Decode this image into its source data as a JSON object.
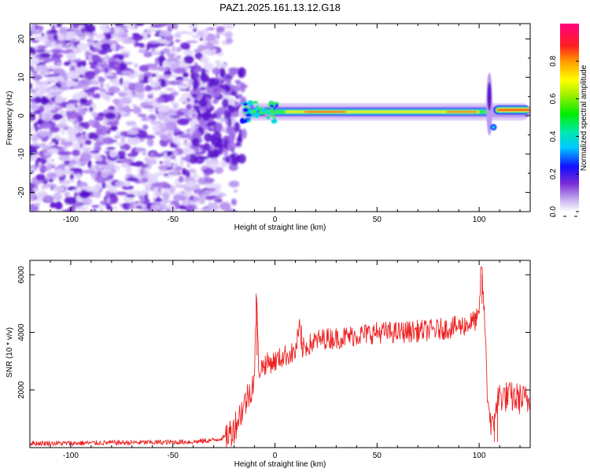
{
  "title": "PAZ1.2025.161.13.12.G18",
  "chart_data": [
    {
      "type": "heatmap",
      "xlabel": "Height of straight line (km)",
      "ylabel": "Frequency (Hz)",
      "xlim": [
        -120,
        125
      ],
      "ylim": [
        -25,
        24
      ],
      "xticks": [
        -100,
        -50,
        0,
        50,
        100
      ],
      "yticks": [
        -20,
        -10,
        0,
        10,
        20
      ],
      "grid": false,
      "colorbar": {
        "label": "Normalized spectral amplitude",
        "range": [
          0,
          1
        ],
        "ticks": [
          "0.0",
          "0.2",
          "0.4",
          "0.6",
          "0.8"
        ],
        "colormap": "rainbow (white, purple, blue, cyan, green, yellow, orange, red, magenta)"
      },
      "features": [
        {
          "x_range": [
            -120,
            -20
          ],
          "frequency_range": [
            -25,
            24
          ],
          "amplitude": "low, scattered noise (purple)"
        },
        {
          "x_range": [
            -20,
            0
          ],
          "frequency_center": 0,
          "frequency_width": 3,
          "amplitude": "medium (blue-green)"
        },
        {
          "x_range": [
            0,
            105
          ],
          "frequency_center": 1,
          "frequency_width": 3,
          "amplitude": "high, continuous band (green-yellow with red core)"
        },
        {
          "x_range": [
            103,
            107
          ],
          "frequency_range": [
            -8,
            15
          ],
          "amplitude": "vertical spike (blue-green)"
        },
        {
          "x_range": [
            108,
            125
          ],
          "frequency_center": 1.5,
          "frequency_width": 3,
          "amplitude": "very high (red core)"
        }
      ]
    },
    {
      "type": "line",
      "xlabel": "Height of straight line (km)",
      "ylabel": "SNR (10 * v/v)",
      "xlim": [
        -120,
        125
      ],
      "ylim": [
        0,
        6500
      ],
      "xticks": [
        -100,
        -50,
        0,
        50,
        100
      ],
      "yticks": [
        2000,
        4000,
        6000
      ],
      "grid": false,
      "series": [
        {
          "color": "#ee2222",
          "x": [
            -120,
            -100,
            -80,
            -60,
            -40,
            -30,
            -25,
            -22,
            -20,
            -18,
            -15,
            -12,
            -10,
            -9,
            -8,
            -5,
            0,
            5,
            10,
            12,
            13,
            15,
            20,
            25,
            30,
            40,
            50,
            60,
            70,
            80,
            90,
            95,
            100,
            101,
            103,
            104,
            105,
            107,
            108,
            110,
            115,
            120,
            125
          ],
          "y": [
            150,
            150,
            170,
            180,
            200,
            260,
            350,
            500,
            700,
            1000,
            1500,
            2000,
            2500,
            5300,
            2700,
            2900,
            3000,
            3200,
            3300,
            4200,
            3400,
            3500,
            3700,
            3800,
            3800,
            3900,
            4000,
            4000,
            4050,
            4100,
            4200,
            4300,
            4500,
            6500,
            4000,
            2000,
            1200,
            500,
            1500,
            1800,
            1750,
            1700,
            1600
          ]
        }
      ]
    }
  ]
}
